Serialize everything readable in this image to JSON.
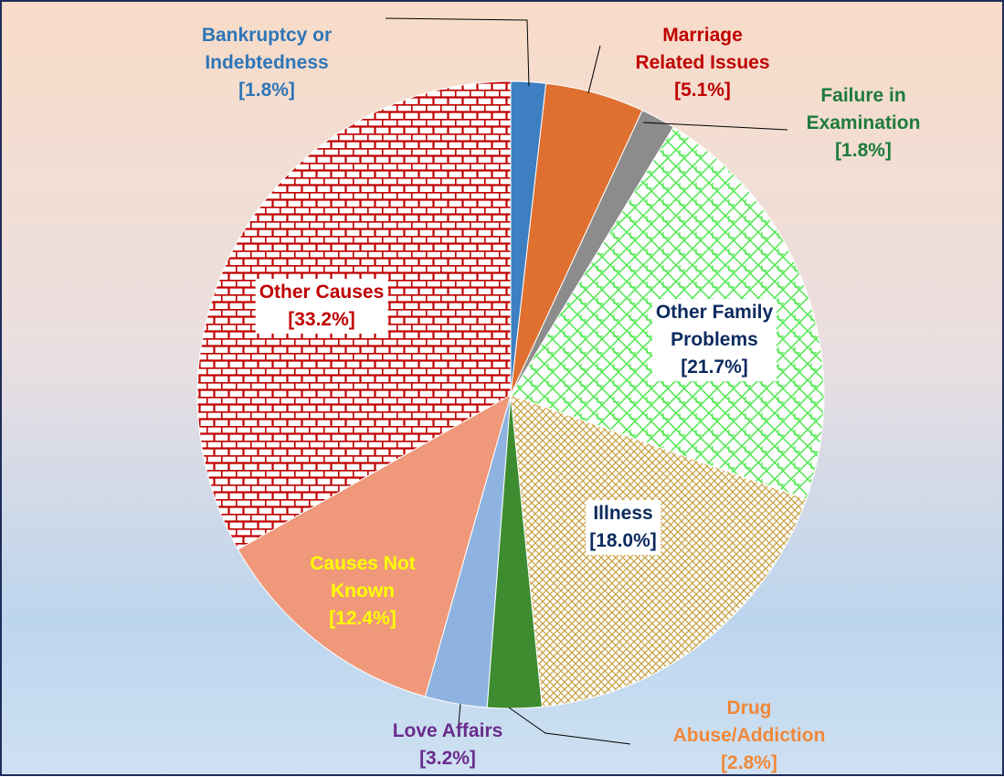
{
  "chart_data": {
    "type": "pie",
    "categories": [
      "Bankruptcy or\nIndebtedness",
      "Marriage\nRelated Issues",
      "Failure in\nExamination",
      "Other Family\nProblems",
      "Illness",
      "Drug\nAbuse/Addiction",
      "Love Affairs",
      "Causes Not\nKnown",
      "Other Causes"
    ],
    "values": [
      1.8,
      5.1,
      1.8,
      21.7,
      18.0,
      2.8,
      3.2,
      12.4,
      33.2
    ],
    "value_labels": [
      "[1.8%]",
      "[5.1%]",
      "[1.8%]",
      "[21.7%]",
      "[18.0%]",
      "[2.8%]",
      "[3.2%]",
      "[12.4%]",
      "[33.2%]"
    ],
    "colors": [
      "#3d7fc0",
      "#e07030",
      "#8c8c8c",
      "#4de84d",
      "#c8a040",
      "#3d8c30",
      "#8fb3e0",
      "#f0987a",
      "#c00000"
    ],
    "patterns": [
      "solid",
      "solid",
      "solid",
      "lattice",
      "crosshatch",
      "solid",
      "solid",
      "solid",
      "brick"
    ],
    "label_colors": [
      "#2e75b6",
      "#c00000",
      "#1e7b3a",
      "#0b2a5e",
      "#0b2a5e",
      "#f0883a",
      "#6a2c8c",
      "#ffff00",
      "#c00000"
    ]
  }
}
